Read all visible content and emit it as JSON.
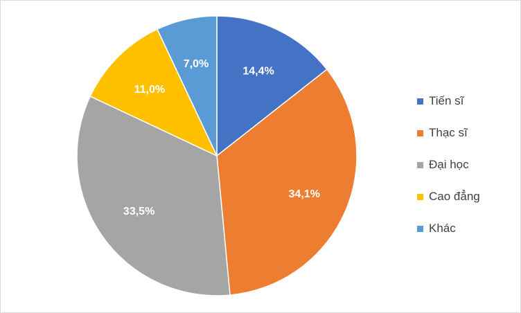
{
  "chart_data": {
    "type": "pie",
    "categories": [
      "Tiến sĩ",
      "Thạc sĩ",
      "Đại học",
      "Cao đẳng",
      "Khác"
    ],
    "values": [
      14.4,
      34.1,
      33.5,
      11.0,
      7.0
    ],
    "labels": [
      "14,4%",
      "34,1%",
      "33,5%",
      "11,0%",
      "7,0%"
    ],
    "colors": [
      "#4472C4",
      "#ED7D31",
      "#A5A5A5",
      "#FFC000",
      "#5B9BD5"
    ],
    "legend_position": "right",
    "start": "12 o'clock, clockwise"
  },
  "legend": {
    "items": [
      {
        "label": "Tiến sĩ",
        "color": "#4472C4"
      },
      {
        "label": "Thạc sĩ",
        "color": "#ED7D31"
      },
      {
        "label": "Đại học",
        "color": "#A5A5A5"
      },
      {
        "label": "Cao đẳng",
        "color": "#FFC000"
      },
      {
        "label": "Khác",
        "color": "#5B9BD5"
      }
    ]
  }
}
